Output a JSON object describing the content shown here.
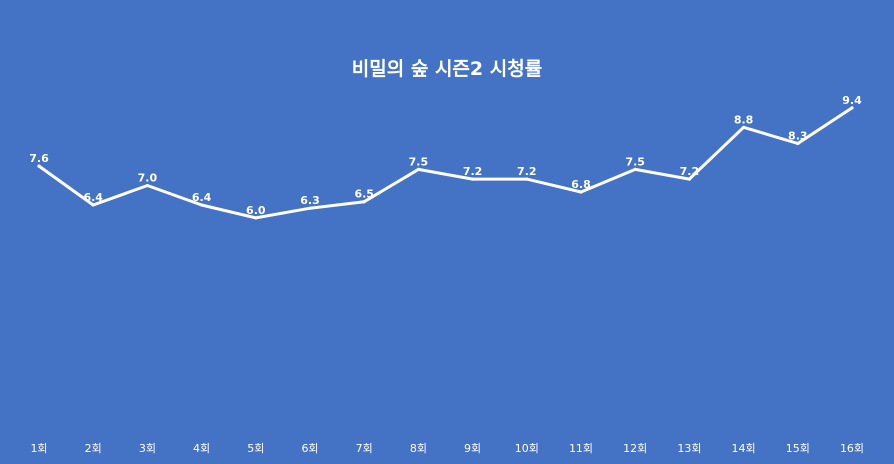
{
  "chart_data": {
    "type": "line",
    "title": "비밀의 숲 시즌2 시청률",
    "categories": [
      "1회",
      "2회",
      "3회",
      "4회",
      "5회",
      "6회",
      "7회",
      "8회",
      "9회",
      "10회",
      "11회",
      "12회",
      "13회",
      "14회",
      "15회",
      "16회"
    ],
    "series": [
      {
        "values": [
          7.6,
          6.4,
          7.0,
          6.4,
          6.0,
          6.3,
          6.5,
          7.5,
          7.2,
          7.2,
          6.8,
          7.5,
          7.2,
          8.8,
          8.3,
          9.4
        ],
        "labels": [
          "7.6",
          "6.4",
          "7.0",
          "6.4",
          "6.0",
          "6.3",
          "6.5",
          "7.5",
          "7.2",
          "7.2",
          "6.8",
          "7.5",
          "7.2",
          "8.8",
          "8.3",
          "9.4"
        ]
      }
    ],
    "xlabel": "",
    "ylabel": "",
    "grid": false,
    "drop_lines": true,
    "colors": {
      "background": "#4472C4",
      "line": "#FFFFFF",
      "text": "#FFFFFF"
    }
  }
}
